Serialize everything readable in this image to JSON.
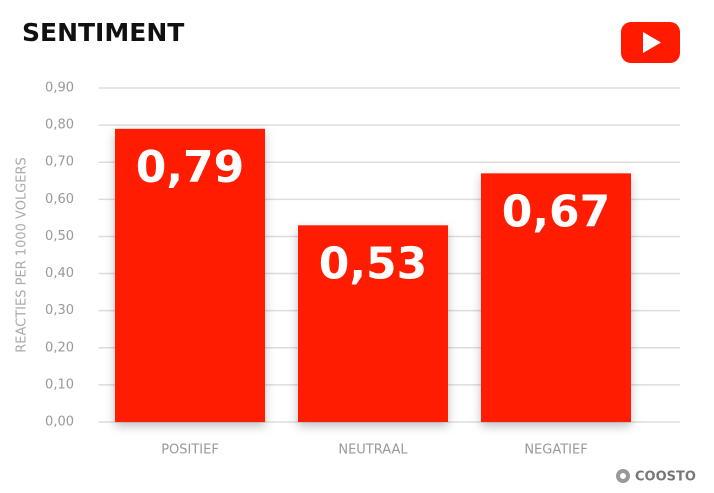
{
  "chart_data": {
    "type": "bar",
    "title": "SENTIMENT",
    "ylabel": "REACTIES PER 1000 VOLGERS",
    "categories": [
      "POSITIEF",
      "NEUTRAAL",
      "NEGATIEF"
    ],
    "values": [
      0.79,
      0.53,
      0.67
    ],
    "value_labels": [
      "0,79",
      "0,53",
      "0,67"
    ],
    "color": "#ff1a00",
    "ylim": [
      0,
      0.9
    ],
    "yticks": [
      {
        "value": 0,
        "label": "0,00"
      },
      {
        "value": 0.1,
        "label": "0,10"
      },
      {
        "value": 0.2,
        "label": "0,20"
      },
      {
        "value": 0.3,
        "label": "0,30"
      },
      {
        "value": 0.4,
        "label": "0,40"
      },
      {
        "value": 0.5,
        "label": "0,50"
      },
      {
        "value": 0.6,
        "label": "0,60"
      },
      {
        "value": 0.7,
        "label": "0,70"
      },
      {
        "value": 0.8,
        "label": "0,80"
      },
      {
        "value": 0.9,
        "label": "0,90"
      }
    ],
    "grid": true,
    "brand": "COOSTO"
  }
}
